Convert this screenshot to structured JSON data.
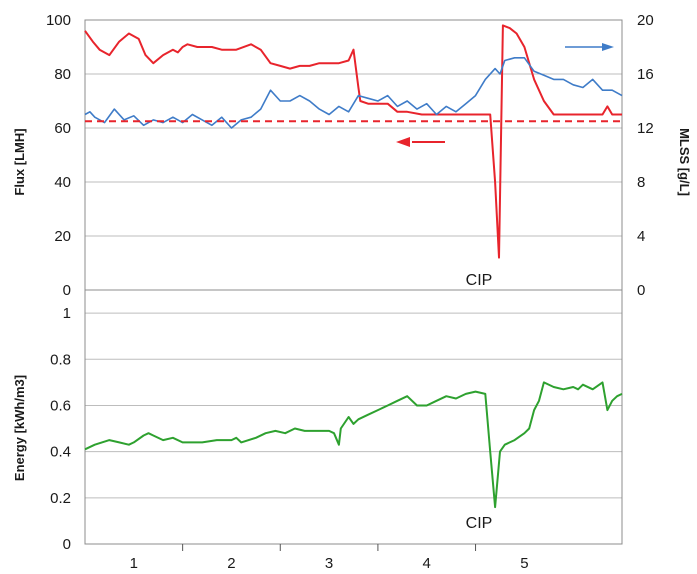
{
  "colors": {
    "flux": "#e8242c",
    "mlss": "#3f7cc8",
    "energy": "#2ea12f",
    "grid": "#bdbdbd",
    "frame": "#8c8c8c"
  },
  "chart_data": [
    {
      "type": "line",
      "ylabel": "Flux [LMH]",
      "y2label": "MLSS [g/L]",
      "xlim": [
        0,
        5.5
      ],
      "ylim": [
        0,
        100
      ],
      "y2lim": [
        0,
        20
      ],
      "yticks": [
        "0",
        "20",
        "40",
        "60",
        "80",
        "100"
      ],
      "y2ticks": [
        "0",
        "4",
        "8",
        "12",
        "16",
        "20"
      ],
      "grid": true,
      "annotation": "CIP",
      "reference_line": 62,
      "series": [
        {
          "axis": "left",
          "x": [
            0.0,
            0.08,
            0.15,
            0.25,
            0.35,
            0.45,
            0.55,
            0.62,
            0.7,
            0.8,
            0.9,
            0.95,
            1.0,
            1.05,
            1.15,
            1.3,
            1.4,
            1.55,
            1.7,
            1.8,
            1.9,
            2.0,
            2.1,
            2.2,
            2.3,
            2.4,
            2.5,
            2.6,
            2.7,
            2.75,
            2.8,
            2.82,
            2.9,
            3.0,
            3.1,
            3.2,
            3.3,
            3.45,
            3.6,
            3.8,
            4.0,
            4.1,
            4.15,
            4.2,
            4.24,
            4.28,
            4.35,
            4.42,
            4.5,
            4.6,
            4.7,
            4.8,
            5.0,
            5.2,
            5.3,
            5.35,
            5.4,
            5.45,
            5.5
          ],
          "y": [
            96,
            92,
            89,
            87,
            92,
            95,
            93,
            87,
            84,
            87,
            89,
            88,
            90,
            91,
            90,
            90,
            89,
            89,
            91,
            89,
            84,
            83,
            82,
            83,
            83,
            84,
            84,
            84,
            85,
            89,
            75,
            70,
            69,
            69,
            69,
            66,
            66,
            65,
            65,
            65,
            65,
            65,
            65,
            40,
            12,
            98,
            97,
            95,
            90,
            78,
            70,
            65,
            65,
            65,
            65,
            68,
            65,
            65,
            65
          ]
        },
        {
          "axis": "right",
          "x": [
            0.0,
            0.05,
            0.1,
            0.2,
            0.3,
            0.4,
            0.5,
            0.6,
            0.7,
            0.8,
            0.9,
            1.0,
            1.1,
            1.2,
            1.3,
            1.4,
            1.5,
            1.6,
            1.7,
            1.8,
            1.9,
            2.0,
            2.1,
            2.2,
            2.3,
            2.4,
            2.5,
            2.6,
            2.7,
            2.8,
            2.9,
            3.0,
            3.1,
            3.2,
            3.3,
            3.4,
            3.5,
            3.6,
            3.7,
            3.8,
            3.9,
            4.0,
            4.1,
            4.2,
            4.25,
            4.3,
            4.4,
            4.5,
            4.6,
            4.7,
            4.8,
            4.9,
            5.0,
            5.1,
            5.2,
            5.3,
            5.4,
            5.5
          ],
          "y": [
            13.0,
            13.2,
            12.8,
            12.4,
            13.4,
            12.6,
            12.9,
            12.2,
            12.6,
            12.4,
            12.8,
            12.4,
            13.0,
            12.6,
            12.2,
            12.8,
            12.0,
            12.6,
            12.8,
            13.4,
            14.8,
            14.0,
            14.0,
            14.4,
            14.0,
            13.4,
            13.0,
            13.6,
            13.2,
            14.4,
            14.2,
            14.0,
            14.4,
            13.6,
            14.0,
            13.4,
            13.8,
            13.0,
            13.6,
            13.2,
            13.8,
            14.4,
            15.6,
            16.4,
            16.0,
            17.0,
            17.2,
            17.2,
            16.2,
            15.9,
            15.6,
            15.6,
            15.2,
            15.0,
            15.6,
            14.8,
            14.8,
            14.4
          ]
        },
        {
          "axis": "left",
          "x": [
            0.0,
            5.5
          ],
          "y": [
            62.5,
            62.5
          ]
        }
      ]
    },
    {
      "type": "line",
      "ylabel": "Energy [kWh/m3]",
      "xlim": [
        0,
        5.5
      ],
      "ylim": [
        0,
        1.1
      ],
      "yticks": [
        "0",
        "0.2",
        "0.4",
        "0.6",
        "0.8",
        "1"
      ],
      "xticks": [
        "1",
        "2",
        "3",
        "4",
        "5"
      ],
      "grid": true,
      "annotation": "CIP",
      "series": [
        {
          "x": [
            0.0,
            0.1,
            0.25,
            0.35,
            0.45,
            0.5,
            0.6,
            0.65,
            0.7,
            0.8,
            0.9,
            1.0,
            1.2,
            1.35,
            1.5,
            1.55,
            1.6,
            1.75,
            1.85,
            1.95,
            2.05,
            2.15,
            2.25,
            2.35,
            2.45,
            2.5,
            2.55,
            2.6,
            2.62,
            2.7,
            2.75,
            2.8,
            2.9,
            3.0,
            3.1,
            3.2,
            3.3,
            3.4,
            3.5,
            3.6,
            3.7,
            3.8,
            3.9,
            4.0,
            4.1,
            4.15,
            4.2,
            4.25,
            4.3,
            4.35,
            4.4,
            4.5,
            4.55,
            4.6,
            4.65,
            4.7,
            4.8,
            4.9,
            5.0,
            5.05,
            5.1,
            5.2,
            5.3,
            5.35,
            5.4,
            5.45,
            5.5
          ],
          "y": [
            0.41,
            0.43,
            0.45,
            0.44,
            0.43,
            0.44,
            0.47,
            0.48,
            0.47,
            0.45,
            0.46,
            0.44,
            0.44,
            0.45,
            0.45,
            0.46,
            0.44,
            0.46,
            0.48,
            0.49,
            0.48,
            0.5,
            0.49,
            0.49,
            0.49,
            0.49,
            0.48,
            0.43,
            0.5,
            0.55,
            0.52,
            0.54,
            0.56,
            0.58,
            0.6,
            0.62,
            0.64,
            0.6,
            0.6,
            0.62,
            0.64,
            0.63,
            0.65,
            0.66,
            0.65,
            0.4,
            0.16,
            0.4,
            0.43,
            0.44,
            0.45,
            0.48,
            0.5,
            0.58,
            0.62,
            0.7,
            0.68,
            0.67,
            0.68,
            0.67,
            0.69,
            0.67,
            0.7,
            0.58,
            0.62,
            0.64,
            0.65
          ]
        }
      ]
    }
  ]
}
